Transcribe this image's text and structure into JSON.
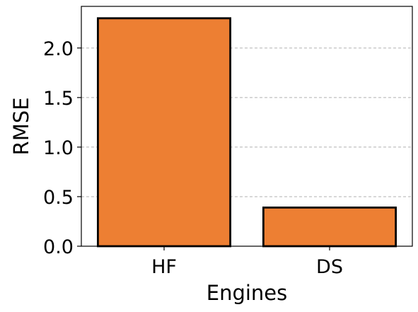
{
  "chart_data": {
    "type": "bar",
    "title": "",
    "xlabel": "Engines",
    "ylabel": "RMSE",
    "categories": [
      "HF",
      "DS"
    ],
    "values": [
      2.3,
      0.39
    ],
    "ylim": [
      0,
      2.42
    ],
    "yticks": [
      0.0,
      0.5,
      1.0,
      1.5,
      2.0
    ],
    "ytick_labels": [
      "0.0",
      "0.5",
      "1.0",
      "1.5",
      "2.0"
    ],
    "grid": "y-dashed",
    "bar_color": "#ed7f33",
    "edge_color": "#000000",
    "grid_color": "#b0b0b0"
  }
}
